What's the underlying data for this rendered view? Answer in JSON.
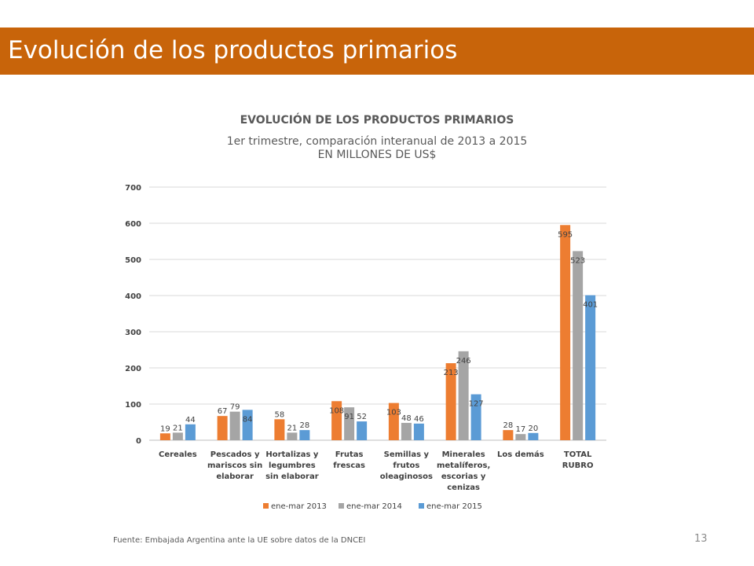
{
  "slide": {
    "title": "Evolución de los productos primarios",
    "source": "Fuente: Embajada Argentina ante la UE sobre datos de la DNCEI",
    "page_number": "13",
    "banner_color": "#C8640A"
  },
  "chart_data": {
    "type": "bar",
    "title": "EVOLUCIÓN DE LOS PRODUCTOS PRIMARIOS",
    "subtitle": "1er trimestre, comparación interanual de 2013 a 2015",
    "subtitle2": "EN MILLONES DE US$",
    "xlabel": "",
    "ylabel": "",
    "ylim": [
      0,
      700
    ],
    "yticks": [
      "0",
      "100",
      "200",
      "300",
      "400",
      "500",
      "600",
      "700"
    ],
    "grid": true,
    "legend_position": "bottom",
    "categories": [
      [
        "Cereales"
      ],
      [
        "Pescados y",
        "mariscos sin",
        "elaborar"
      ],
      [
        "Hortalizas y",
        "legumbres",
        "sin elaborar"
      ],
      [
        "Frutas",
        "frescas"
      ],
      [
        "Semillas y",
        "frutos",
        "oleaginosos"
      ],
      [
        "Minerales",
        "metalíferos,",
        "escorias y",
        "cenizas"
      ],
      [
        "Los demás"
      ],
      [
        "TOTAL",
        "RUBRO"
      ]
    ],
    "series": [
      {
        "name": "ene-mar 2013",
        "color": "#ED7D31",
        "values": [
          19,
          67,
          58,
          108,
          103,
          213,
          28,
          595
        ],
        "labels": [
          "19",
          "67",
          "58",
          "108",
          "103",
          "213",
          "28",
          "595"
        ]
      },
      {
        "name": "ene-mar 2014",
        "color": "#A5A5A5",
        "values": [
          21,
          79,
          21,
          91,
          48,
          246,
          17,
          523
        ],
        "labels": [
          "21",
          "79",
          "21",
          "91",
          "48",
          "246",
          "17",
          "523"
        ]
      },
      {
        "name": "ene-mar 2015",
        "color": "#5B9BD5",
        "values": [
          44,
          84,
          28,
          52,
          46,
          127,
          20,
          401
        ],
        "labels": [
          "44",
          "84",
          "28",
          "52",
          "46",
          "127",
          "20",
          "401"
        ]
      }
    ]
  }
}
